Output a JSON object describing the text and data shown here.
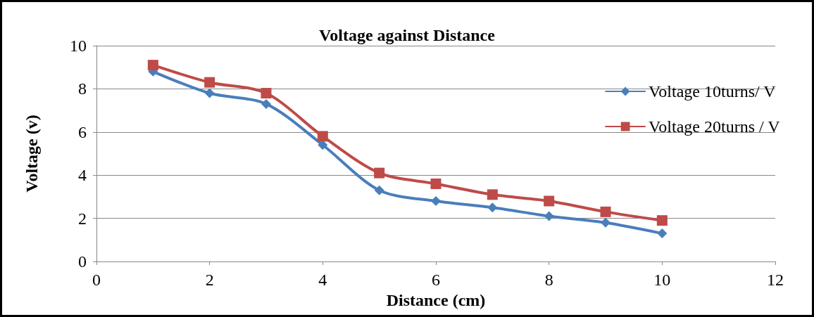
{
  "chart_data": {
    "type": "line",
    "title": "Voltage against Distance",
    "xlabel": "Distance (cm)",
    "ylabel": "Voltage (v)",
    "x": [
      1,
      2,
      3,
      4,
      5,
      6,
      7,
      8,
      9,
      10
    ],
    "series": [
      {
        "name": "Voltage 10turns/ V",
        "color": "#4a7ebb",
        "marker": "diamond",
        "values": [
          8.8,
          7.8,
          7.3,
          5.4,
          3.3,
          2.8,
          2.5,
          2.1,
          1.8,
          1.3
        ]
      },
      {
        "name": "Voltage 20turns / V",
        "color": "#be4b48",
        "marker": "square",
        "values": [
          9.1,
          8.3,
          7.8,
          5.8,
          4.1,
          3.6,
          3.1,
          2.8,
          2.3,
          1.9
        ]
      }
    ],
    "xlim": [
      0,
      12
    ],
    "xticks": [
      0,
      2,
      4,
      6,
      8,
      10,
      12
    ],
    "ylim": [
      0,
      10
    ],
    "yticks": [
      0,
      2,
      4,
      6,
      8,
      10
    ],
    "grid": "y",
    "legend": "right",
    "line_style": "solid"
  }
}
